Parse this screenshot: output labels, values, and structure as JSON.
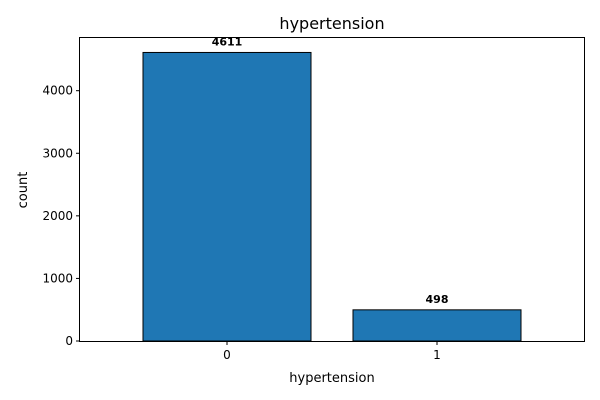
{
  "chart_data": {
    "type": "bar",
    "title": "hypertension",
    "xlabel": "hypertension",
    "ylabel": "count",
    "categories": [
      "0",
      "1"
    ],
    "values": [
      4611,
      498
    ],
    "data_labels": [
      "4611",
      "498"
    ],
    "ylim": [
      0,
      4842
    ],
    "yticks": [
      0,
      1000,
      2000,
      3000,
      4000
    ],
    "grid": false,
    "legend": "none",
    "colors": {
      "bar": "#1f77b4",
      "edge": "#000000"
    }
  }
}
